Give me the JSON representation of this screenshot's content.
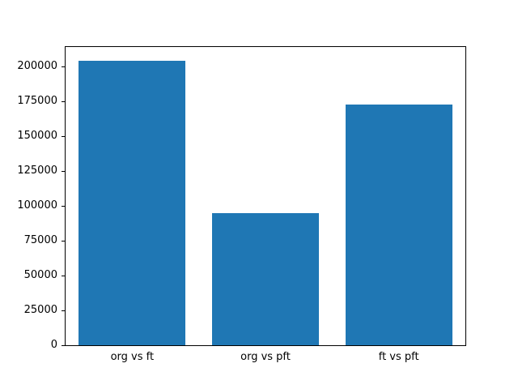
{
  "chart_data": {
    "type": "bar",
    "title": "",
    "xlabel": "",
    "ylabel": "",
    "categories": [
      "org vs ft",
      "org vs pft",
      "ft vs pft"
    ],
    "values": [
      204000,
      95000,
      173000
    ],
    "ylim": [
      0,
      214000
    ],
    "yticks": [
      0,
      25000,
      50000,
      75000,
      100000,
      125000,
      150000,
      175000,
      200000
    ],
    "bar_color": "#1f77b4",
    "bar_width_fraction": 0.8,
    "grid": false,
    "legend": false,
    "axis_color": "#000000",
    "background_color": "#ffffff"
  }
}
